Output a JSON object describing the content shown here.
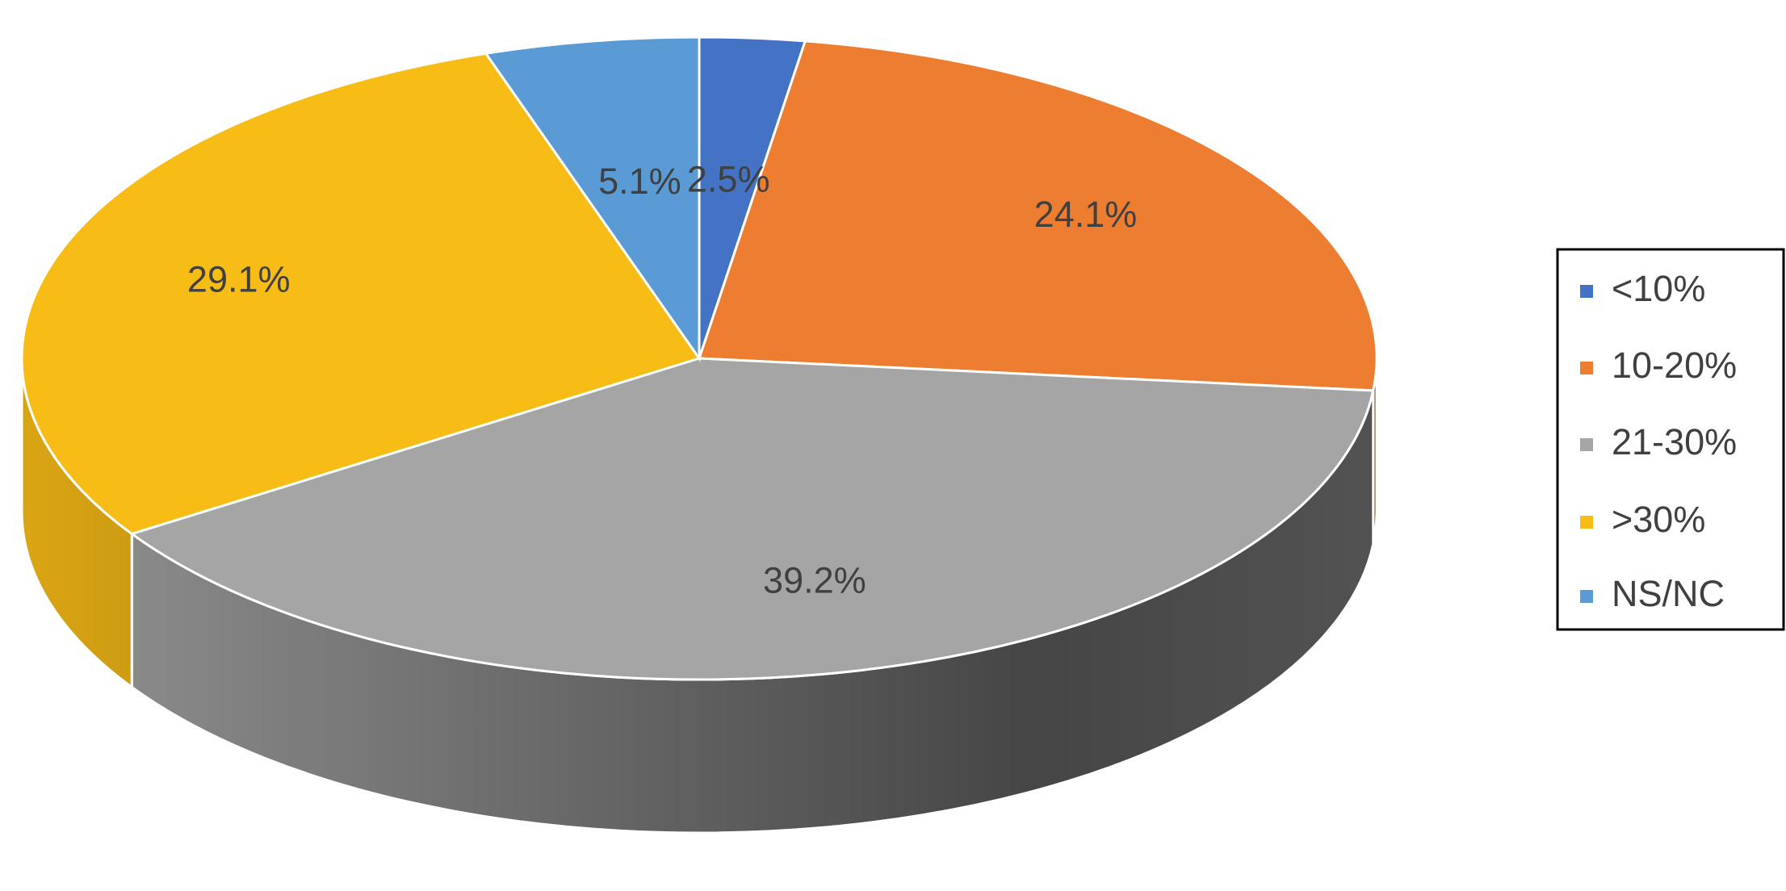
{
  "chart_data": {
    "type": "pie",
    "categories": [
      "<10%",
      "10-20%",
      "21-30%",
      ">30%",
      "NS/NC"
    ],
    "values": [
      2.5,
      24.1,
      39.2,
      29.1,
      5.1
    ],
    "value_labels": [
      "2.5%",
      "24.1%",
      "39.2%",
      "29.1%",
      "5.1%"
    ],
    "colors": [
      "#4472c4",
      "#ed7d31",
      "#a5a5a5",
      "#f8bc17",
      "#5b9bd5"
    ],
    "legend": "right"
  }
}
